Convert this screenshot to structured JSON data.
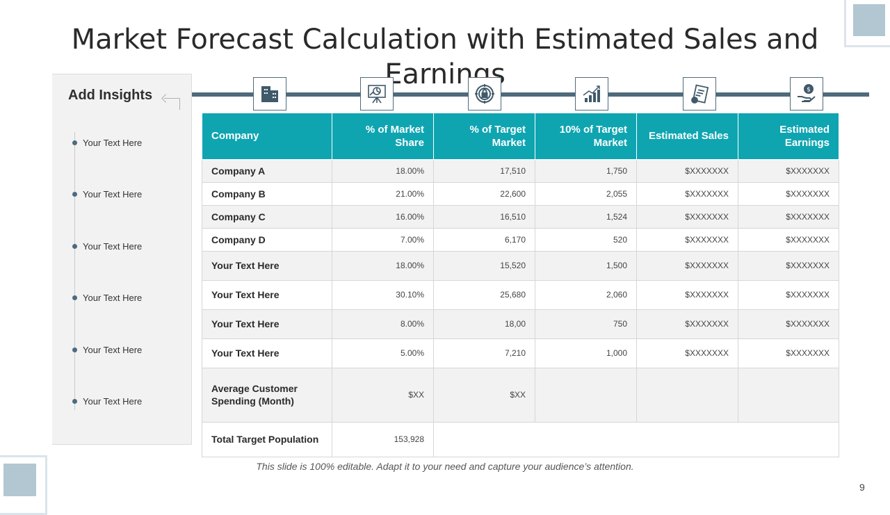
{
  "title": "Market Forecast Calculation with Estimated Sales and Earnings",
  "insights": {
    "heading": "Add Insights",
    "items": [
      "Your Text Here",
      "Your Text Here",
      "Your Text Here",
      "Your Text Here",
      "Your Text Here",
      "Your Text Here"
    ]
  },
  "icons": [
    "building-icon",
    "presentation-chart-icon",
    "target-lock-icon",
    "growth-chart-icon",
    "document-checklist-icon",
    "money-hand-icon"
  ],
  "table": {
    "headers": [
      "Company",
      "% of Market Share",
      "% of Target Market",
      "10% of Target Market",
      "Estimated Sales",
      "Estimated Earnings"
    ],
    "rows": [
      [
        "Company  A",
        "18.00%",
        "17,510",
        "1,750",
        "$XXXXXXX",
        "$XXXXXXX"
      ],
      [
        "Company  B",
        "21.00%",
        "22,600",
        "2,055",
        "$XXXXXXX",
        "$XXXXXXX"
      ],
      [
        "Company  C",
        "16.00%",
        "16,510",
        "1,524",
        "$XXXXXXX",
        "$XXXXXXX"
      ],
      [
        "Company  D",
        "7.00%",
        "6,170",
        "520",
        "$XXXXXXX",
        "$XXXXXXX"
      ],
      [
        "Your Text Here",
        "18.00%",
        "15,520",
        "1,500",
        "$XXXXXXX",
        "$XXXXXXX"
      ],
      [
        "Your Text Here",
        "30.10%",
        "25,680",
        "2,060",
        "$XXXXXXX",
        "$XXXXXXX"
      ],
      [
        "Your Text Here",
        "8.00%",
        "18,00",
        "750",
        "$XXXXXXX",
        "$XXXXXXX"
      ],
      [
        "Your Text Here",
        "5.00%",
        "7,210",
        "1,000",
        "$XXXXXXX",
        "$XXXXXXX"
      ]
    ],
    "avg_row": {
      "label": "Average Customer Spending (Month)",
      "share": "$XX",
      "target": "$XX"
    },
    "total_row": {
      "label": "Total Target Population",
      "value": "153,928"
    }
  },
  "footnote": "This slide is 100% editable. Adapt it to your need and capture your audience’s attention.",
  "page_number": "9",
  "colors": {
    "accent": "#0ea5b1",
    "slate": "#4e6b7c",
    "panel": "#f2f2f2"
  }
}
